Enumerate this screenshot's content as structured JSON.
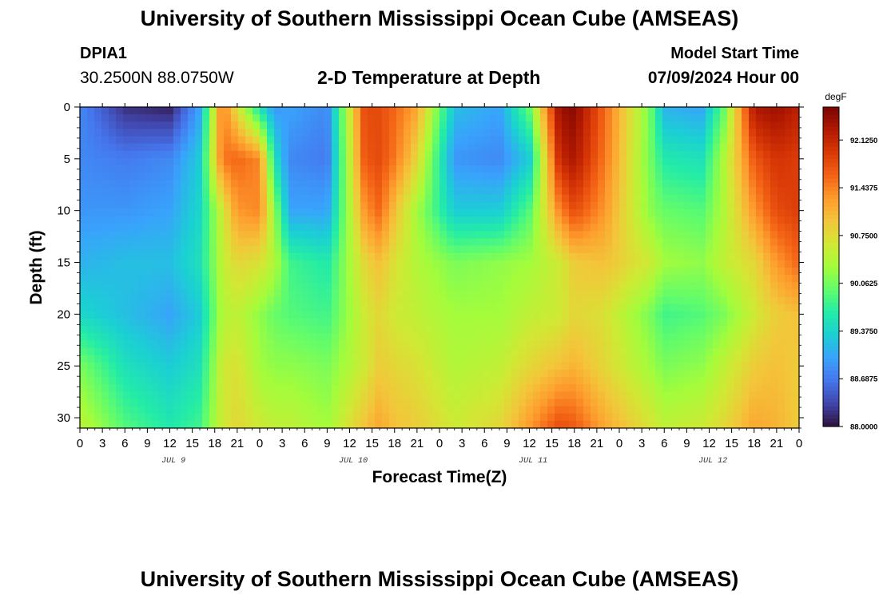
{
  "header": {
    "title": "University of Southern Mississippi Ocean Cube (AMSEAS)",
    "station_id": "DPIA1",
    "station_coords": "30.2500N  88.0750W",
    "plot_title": "2-D Temperature at Depth",
    "model_start_label": "Model Start Time",
    "model_start_value": "07/09/2024 Hour 00"
  },
  "footer": {
    "title": "University of Southern Mississippi Ocean Cube (AMSEAS)"
  },
  "colors": {
    "colormap": [
      "#30123b",
      "#4145ab",
      "#4675ed",
      "#39a2fc",
      "#1bcfd4",
      "#24eca6",
      "#61fc6c",
      "#a4fc3b",
      "#d1e834",
      "#f3c63a",
      "#fe9b2d",
      "#f36315",
      "#d93806",
      "#b11901",
      "#7a0403"
    ],
    "axis": "#000000"
  },
  "chart_data": {
    "type": "heatmap",
    "title": "2-D Temperature at Depth",
    "xlabel": "Forecast Time(Z)",
    "ylabel": "Depth (ft)",
    "x_ticks": [
      "0",
      "3",
      "6",
      "9",
      "12",
      "15",
      "18",
      "21",
      "0",
      "3",
      "6",
      "9",
      "12",
      "15",
      "18",
      "21",
      "0",
      "3",
      "6",
      "9",
      "12",
      "15",
      "18",
      "21",
      "0",
      "3",
      "6",
      "9",
      "12",
      "15",
      "18",
      "21",
      "0"
    ],
    "day_labels": [
      "JUL 9",
      "JUL 10",
      "JUL 11",
      "JUL 12"
    ],
    "y_ticks": [
      "0",
      "5",
      "10",
      "15",
      "20",
      "25",
      "30"
    ],
    "ylim": [
      0,
      31
    ],
    "xlim_hours": [
      0,
      96
    ],
    "colorbar": {
      "unit": "degF",
      "min": 88.0,
      "max": 92.6,
      "tick_labels": [
        "92.1250",
        "91.4375",
        "90.7500",
        "90.0625",
        "89.3750",
        "88.6875",
        "88.0000"
      ],
      "tick_values": [
        92.125,
        91.4375,
        90.75,
        90.0625,
        89.375,
        88.6875,
        88.0
      ]
    },
    "x_hours": [
      0,
      6,
      12,
      16,
      19,
      21,
      24,
      26,
      28,
      33,
      38,
      40,
      42,
      45,
      50,
      56,
      60,
      64,
      66,
      70,
      76,
      78,
      83,
      86,
      90,
      93,
      96
    ],
    "depths_ft": [
      0,
      5,
      10,
      15,
      20,
      25,
      31
    ],
    "temperature_degF": [
      [
        88.8,
        88.2,
        88.1,
        89.0,
        91.5,
        90.7,
        89.5,
        88.9,
        89.0,
        88.8,
        91.8,
        91.8,
        91.6,
        91.2,
        89.2,
        89.0,
        90.0,
        92.4,
        92.5,
        91.6,
        90.1,
        89.1,
        89.0,
        90.0,
        92.3,
        92.4,
        92.2
      ],
      [
        88.8,
        88.7,
        88.8,
        89.3,
        91.5,
        91.6,
        91.4,
        89.5,
        88.8,
        88.7,
        91.7,
        91.8,
        91.5,
        90.8,
        88.9,
        88.8,
        89.3,
        92.1,
        92.3,
        91.5,
        90.1,
        89.6,
        89.5,
        90.4,
        91.7,
        92.0,
        91.9
      ],
      [
        88.9,
        88.9,
        89.0,
        89.4,
        90.6,
        91.3,
        91.4,
        90.2,
        89.0,
        89.0,
        91.3,
        91.6,
        91.0,
        90.3,
        89.3,
        89.3,
        89.9,
        91.4,
        91.8,
        91.3,
        90.2,
        90.0,
        89.9,
        90.4,
        91.3,
        91.8,
        91.9
      ],
      [
        89.1,
        89.2,
        89.2,
        89.5,
        90.5,
        90.8,
        90.7,
        90.4,
        89.8,
        89.6,
        90.8,
        91.0,
        90.7,
        90.4,
        90.1,
        90.2,
        90.3,
        90.6,
        90.9,
        91.0,
        90.6,
        90.3,
        90.2,
        90.5,
        90.8,
        91.3,
        91.6
      ],
      [
        89.4,
        89.2,
        89.0,
        89.3,
        90.4,
        90.5,
        90.2,
        90.0,
        89.9,
        89.8,
        90.6,
        90.8,
        90.6,
        90.5,
        90.3,
        90.3,
        90.5,
        90.6,
        90.8,
        90.7,
        90.1,
        89.8,
        89.9,
        90.1,
        90.6,
        90.9,
        91.0
      ],
      [
        90.1,
        89.5,
        89.3,
        89.5,
        90.6,
        90.7,
        90.3,
        90.2,
        90.2,
        90.1,
        90.6,
        90.9,
        90.8,
        90.7,
        90.4,
        90.5,
        90.8,
        91.0,
        91.1,
        90.8,
        90.3,
        90.1,
        90.2,
        90.5,
        90.9,
        91.0,
        90.9
      ],
      [
        90.5,
        89.9,
        89.6,
        89.8,
        90.6,
        90.8,
        90.6,
        90.5,
        90.5,
        90.3,
        91.0,
        91.2,
        91.0,
        90.9,
        90.6,
        90.8,
        91.3,
        91.8,
        91.7,
        91.2,
        90.7,
        90.5,
        90.6,
        90.8,
        91.2,
        91.1,
        90.9
      ]
    ]
  }
}
